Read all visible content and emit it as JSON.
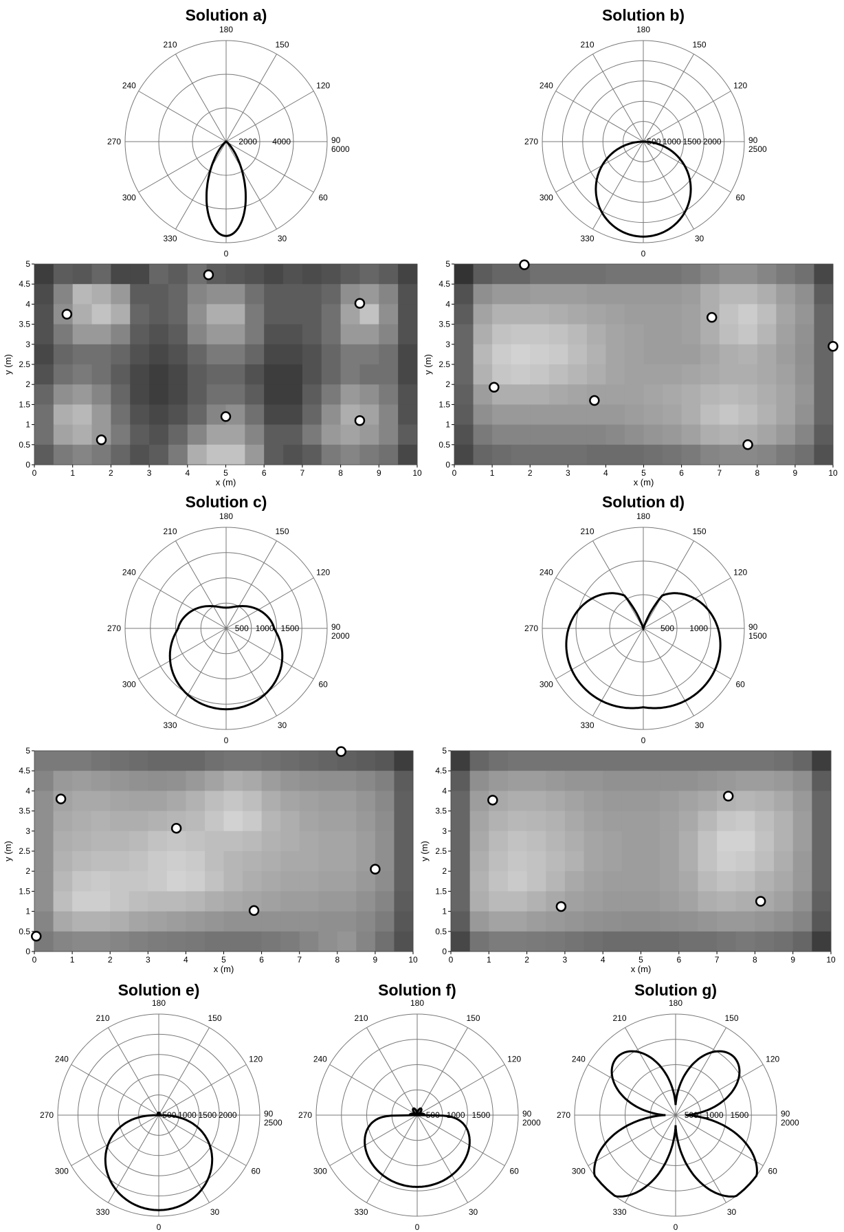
{
  "polar_common": {
    "angle_labels": [
      "0",
      "30",
      "60",
      "90",
      "120",
      "150",
      "180",
      "210",
      "240",
      "270",
      "300",
      "330"
    ],
    "rotation": "0 at bottom, clockwise through 90 at right",
    "line_color": "#000000",
    "grid_color": "#777777"
  },
  "heatmap_common": {
    "x_ticks": [
      "0",
      "1",
      "2",
      "3",
      "4",
      "5",
      "6",
      "7",
      "8",
      "9",
      "10"
    ],
    "y_ticks": [
      "0",
      "0.5",
      "1",
      "1.5",
      "2",
      "2.5",
      "3",
      "3.5",
      "4",
      "4.5",
      "5"
    ],
    "xlabel": "x (m)",
    "ylabel": "y (m)",
    "xlim": [
      0,
      10
    ],
    "ylim": [
      0,
      5
    ],
    "colormap": "grayscale (dark = low, light = high)"
  },
  "chart_data": [
    {
      "id": "a",
      "type": "polar",
      "title": "Solution a)",
      "rmax": 6000,
      "ring_labels": [
        "2000",
        "4000",
        "6000"
      ],
      "shape": "narrow single lobe toward 0 deg",
      "r_at_0": 5600,
      "lobe_power": 8
    },
    {
      "id": "b",
      "type": "polar",
      "title": "Solution b)",
      "rmax": 2500,
      "ring_labels": [
        "500",
        "1000",
        "1500",
        "2000",
        "2500"
      ],
      "shape": "circle toward 0 deg",
      "r_at_0": 2350,
      "lobe_power": 1
    },
    {
      "id": "c",
      "type": "polar",
      "title": "Solution c)",
      "rmax": 2000,
      "ring_labels": [
        "500",
        "1000",
        "1500",
        "2000"
      ],
      "shape": "heart-like lobe toward 0 deg with small upper lobes",
      "r_at_0": 1600,
      "r_at_60": 1150,
      "r_at_90": 830,
      "r_at_130": 430
    },
    {
      "id": "d",
      "type": "polar",
      "title": "Solution d)",
      "rmax": 1500,
      "ring_labels": [
        "500",
        "1000",
        "1500"
      ],
      "shape": "two large lobes near +/-100 deg",
      "r_at_0": 1350,
      "r_at_60": 1300,
      "r_at_90": 1330,
      "r_at_130": 1140
    },
    {
      "id": "e",
      "type": "polar",
      "title": "Solution e)",
      "rmax": 2500,
      "ring_labels": [
        "500",
        "1000",
        "1500",
        "2000",
        "2500"
      ],
      "shape": "egg-shaped lobe toward 0 deg",
      "r_at_0": 2350,
      "r_at_45": 1800,
      "r_at_90": 600
    },
    {
      "id": "f",
      "type": "polar",
      "title": "Solution f)",
      "rmax": 2000,
      "ring_labels": [
        "500",
        "1000",
        "1500",
        "2000"
      ],
      "shape": "broad lobe toward 0 deg with tiny upper lobes",
      "r_at_0": 1420,
      "r_at_60": 1410,
      "r_at_90": 720
    },
    {
      "id": "g",
      "type": "polar",
      "title": "Solution g)",
      "rmax": 2000,
      "ring_labels": [
        "500",
        "1000",
        "1500",
        "2000"
      ],
      "shape": "four lobes near +/-35 deg and +/-145 deg",
      "r_at_0": 700,
      "r_at_35": 1880,
      "r_at_90": 500,
      "r_at_145": 1430
    },
    {
      "id": "heat_a",
      "type": "heatmap",
      "grid": [
        20,
        10
      ],
      "points": [
        [
          0.85,
          3.75
        ],
        [
          1.75,
          0.62
        ],
        [
          4.55,
          4.73
        ],
        [
          5.0,
          1.2
        ],
        [
          8.5,
          4.02
        ],
        [
          8.5,
          1.1
        ]
      ],
      "values": [
        [
          0.15,
          0.3,
          0.28,
          0.35,
          0.2,
          0.2,
          0.35,
          0.3,
          0.4,
          0.3,
          0.28,
          0.25,
          0.2,
          0.25,
          0.22,
          0.25,
          0.3,
          0.35,
          0.3,
          0.18
        ],
        [
          0.22,
          0.5,
          0.75,
          0.7,
          0.6,
          0.3,
          0.3,
          0.35,
          0.5,
          0.55,
          0.55,
          0.4,
          0.3,
          0.3,
          0.3,
          0.35,
          0.55,
          0.6,
          0.5,
          0.25
        ],
        [
          0.25,
          0.55,
          0.7,
          0.8,
          0.7,
          0.35,
          0.3,
          0.35,
          0.55,
          0.7,
          0.7,
          0.45,
          0.3,
          0.3,
          0.3,
          0.4,
          0.65,
          0.8,
          0.55,
          0.25
        ],
        [
          0.25,
          0.45,
          0.6,
          0.6,
          0.5,
          0.3,
          0.25,
          0.3,
          0.5,
          0.6,
          0.6,
          0.45,
          0.25,
          0.25,
          0.3,
          0.4,
          0.6,
          0.6,
          0.5,
          0.25
        ],
        [
          0.2,
          0.35,
          0.4,
          0.4,
          0.35,
          0.25,
          0.2,
          0.25,
          0.35,
          0.45,
          0.45,
          0.35,
          0.2,
          0.2,
          0.25,
          0.35,
          0.45,
          0.45,
          0.4,
          0.2
        ],
        [
          0.25,
          0.4,
          0.45,
          0.4,
          0.3,
          0.2,
          0.15,
          0.2,
          0.3,
          0.35,
          0.35,
          0.25,
          0.15,
          0.15,
          0.25,
          0.35,
          0.45,
          0.4,
          0.4,
          0.2
        ],
        [
          0.35,
          0.55,
          0.6,
          0.5,
          0.35,
          0.2,
          0.15,
          0.2,
          0.3,
          0.4,
          0.4,
          0.3,
          0.15,
          0.15,
          0.3,
          0.45,
          0.6,
          0.55,
          0.45,
          0.25
        ],
        [
          0.4,
          0.7,
          0.75,
          0.6,
          0.4,
          0.25,
          0.2,
          0.25,
          0.35,
          0.5,
          0.55,
          0.4,
          0.2,
          0.2,
          0.35,
          0.55,
          0.7,
          0.65,
          0.5,
          0.25
        ],
        [
          0.4,
          0.65,
          0.7,
          0.6,
          0.45,
          0.3,
          0.25,
          0.35,
          0.5,
          0.65,
          0.65,
          0.5,
          0.3,
          0.3,
          0.45,
          0.6,
          0.65,
          0.6,
          0.5,
          0.3
        ],
        [
          0.3,
          0.45,
          0.5,
          0.45,
          0.35,
          0.25,
          0.3,
          0.45,
          0.7,
          0.8,
          0.8,
          0.6,
          0.3,
          0.25,
          0.3,
          0.45,
          0.5,
          0.45,
          0.4,
          0.2
        ]
      ]
    },
    {
      "id": "heat_b",
      "type": "heatmap",
      "grid": [
        20,
        10
      ],
      "points": [
        [
          1.05,
          1.93
        ],
        [
          1.85,
          4.98
        ],
        [
          3.7,
          1.6
        ],
        [
          6.8,
          3.67
        ],
        [
          7.75,
          0.5
        ],
        [
          10.0,
          2.95
        ]
      ],
      "values": [
        [
          0.1,
          0.3,
          0.35,
          0.35,
          0.4,
          0.4,
          0.4,
          0.4,
          0.42,
          0.42,
          0.42,
          0.42,
          0.45,
          0.5,
          0.55,
          0.55,
          0.5,
          0.45,
          0.4,
          0.2
        ],
        [
          0.25,
          0.55,
          0.6,
          0.6,
          0.62,
          0.62,
          0.62,
          0.6,
          0.6,
          0.6,
          0.6,
          0.6,
          0.62,
          0.7,
          0.75,
          0.75,
          0.7,
          0.62,
          0.55,
          0.3
        ],
        [
          0.3,
          0.65,
          0.72,
          0.72,
          0.72,
          0.7,
          0.68,
          0.66,
          0.64,
          0.62,
          0.62,
          0.62,
          0.64,
          0.7,
          0.8,
          0.85,
          0.78,
          0.66,
          0.58,
          0.35
        ],
        [
          0.35,
          0.7,
          0.8,
          0.82,
          0.82,
          0.8,
          0.76,
          0.7,
          0.66,
          0.64,
          0.62,
          0.62,
          0.64,
          0.7,
          0.78,
          0.82,
          0.74,
          0.64,
          0.56,
          0.35
        ],
        [
          0.35,
          0.75,
          0.85,
          0.88,
          0.86,
          0.84,
          0.78,
          0.72,
          0.66,
          0.64,
          0.62,
          0.62,
          0.62,
          0.66,
          0.7,
          0.72,
          0.68,
          0.62,
          0.55,
          0.35
        ],
        [
          0.35,
          0.72,
          0.82,
          0.84,
          0.82,
          0.78,
          0.74,
          0.7,
          0.66,
          0.64,
          0.64,
          0.64,
          0.66,
          0.68,
          0.7,
          0.7,
          0.68,
          0.64,
          0.56,
          0.35
        ],
        [
          0.32,
          0.62,
          0.7,
          0.7,
          0.7,
          0.68,
          0.66,
          0.64,
          0.64,
          0.64,
          0.66,
          0.68,
          0.7,
          0.74,
          0.76,
          0.74,
          0.7,
          0.66,
          0.58,
          0.35
        ],
        [
          0.3,
          0.55,
          0.6,
          0.6,
          0.6,
          0.6,
          0.6,
          0.6,
          0.6,
          0.62,
          0.64,
          0.66,
          0.7,
          0.78,
          0.82,
          0.78,
          0.72,
          0.66,
          0.56,
          0.35
        ],
        [
          0.25,
          0.45,
          0.5,
          0.5,
          0.5,
          0.5,
          0.5,
          0.5,
          0.52,
          0.55,
          0.58,
          0.6,
          0.64,
          0.7,
          0.72,
          0.7,
          0.66,
          0.6,
          0.5,
          0.3
        ],
        [
          0.2,
          0.35,
          0.38,
          0.4,
          0.4,
          0.4,
          0.4,
          0.38,
          0.38,
          0.38,
          0.4,
          0.42,
          0.45,
          0.5,
          0.52,
          0.52,
          0.5,
          0.45,
          0.4,
          0.25
        ]
      ]
    },
    {
      "id": "heat_c",
      "type": "heatmap",
      "grid": [
        20,
        10
      ],
      "points": [
        [
          0.05,
          0.38
        ],
        [
          0.7,
          3.8
        ],
        [
          3.75,
          3.07
        ],
        [
          5.8,
          1.02
        ],
        [
          8.1,
          4.98
        ],
        [
          9.0,
          2.05
        ]
      ],
      "values": [
        [
          0.45,
          0.45,
          0.45,
          0.42,
          0.4,
          0.38,
          0.36,
          0.36,
          0.36,
          0.4,
          0.42,
          0.42,
          0.4,
          0.38,
          0.36,
          0.34,
          0.32,
          0.3,
          0.28,
          0.15
        ],
        [
          0.5,
          0.6,
          0.62,
          0.6,
          0.58,
          0.56,
          0.55,
          0.56,
          0.6,
          0.65,
          0.7,
          0.68,
          0.62,
          0.58,
          0.56,
          0.55,
          0.55,
          0.52,
          0.48,
          0.3
        ],
        [
          0.55,
          0.65,
          0.68,
          0.68,
          0.66,
          0.65,
          0.65,
          0.68,
          0.72,
          0.78,
          0.82,
          0.78,
          0.7,
          0.66,
          0.64,
          0.62,
          0.62,
          0.58,
          0.52,
          0.32
        ],
        [
          0.55,
          0.68,
          0.7,
          0.72,
          0.7,
          0.7,
          0.72,
          0.74,
          0.76,
          0.82,
          0.88,
          0.84,
          0.74,
          0.7,
          0.66,
          0.64,
          0.64,
          0.6,
          0.54,
          0.32
        ],
        [
          0.55,
          0.7,
          0.72,
          0.74,
          0.74,
          0.76,
          0.8,
          0.82,
          0.8,
          0.78,
          0.78,
          0.76,
          0.72,
          0.7,
          0.68,
          0.66,
          0.66,
          0.62,
          0.55,
          0.32
        ],
        [
          0.55,
          0.72,
          0.76,
          0.78,
          0.78,
          0.8,
          0.84,
          0.86,
          0.84,
          0.78,
          0.74,
          0.72,
          0.7,
          0.68,
          0.68,
          0.66,
          0.66,
          0.62,
          0.55,
          0.32
        ],
        [
          0.55,
          0.75,
          0.82,
          0.84,
          0.82,
          0.82,
          0.84,
          0.88,
          0.86,
          0.8,
          0.74,
          0.7,
          0.68,
          0.66,
          0.66,
          0.64,
          0.64,
          0.6,
          0.54,
          0.32
        ],
        [
          0.55,
          0.78,
          0.86,
          0.86,
          0.82,
          0.78,
          0.76,
          0.76,
          0.74,
          0.7,
          0.68,
          0.66,
          0.64,
          0.62,
          0.62,
          0.6,
          0.6,
          0.56,
          0.5,
          0.3
        ],
        [
          0.5,
          0.68,
          0.72,
          0.72,
          0.7,
          0.66,
          0.64,
          0.62,
          0.6,
          0.58,
          0.56,
          0.56,
          0.56,
          0.56,
          0.56,
          0.55,
          0.55,
          0.52,
          0.46,
          0.28
        ],
        [
          0.45,
          0.5,
          0.52,
          0.52,
          0.5,
          0.48,
          0.46,
          0.45,
          0.44,
          0.42,
          0.42,
          0.42,
          0.44,
          0.46,
          0.5,
          0.55,
          0.58,
          0.5,
          0.4,
          0.25
        ]
      ]
    },
    {
      "id": "heat_d",
      "type": "heatmap",
      "grid": [
        20,
        10
      ],
      "points": [
        [
          1.1,
          3.77
        ],
        [
          2.9,
          1.12
        ],
        [
          7.3,
          3.87
        ],
        [
          8.15,
          1.25
        ]
      ],
      "values": [
        [
          0.15,
          0.35,
          0.4,
          0.42,
          0.42,
          0.42,
          0.42,
          0.42,
          0.42,
          0.42,
          0.42,
          0.42,
          0.42,
          0.42,
          0.42,
          0.42,
          0.42,
          0.4,
          0.35,
          0.15
        ],
        [
          0.3,
          0.55,
          0.6,
          0.62,
          0.62,
          0.6,
          0.58,
          0.58,
          0.56,
          0.56,
          0.56,
          0.56,
          0.56,
          0.58,
          0.6,
          0.62,
          0.62,
          0.6,
          0.55,
          0.3
        ],
        [
          0.35,
          0.62,
          0.68,
          0.7,
          0.7,
          0.68,
          0.65,
          0.62,
          0.6,
          0.6,
          0.6,
          0.62,
          0.65,
          0.68,
          0.72,
          0.74,
          0.72,
          0.68,
          0.6,
          0.35
        ],
        [
          0.35,
          0.66,
          0.72,
          0.75,
          0.74,
          0.72,
          0.68,
          0.64,
          0.62,
          0.62,
          0.62,
          0.64,
          0.68,
          0.75,
          0.82,
          0.84,
          0.78,
          0.72,
          0.62,
          0.35
        ],
        [
          0.35,
          0.68,
          0.76,
          0.8,
          0.78,
          0.74,
          0.7,
          0.66,
          0.64,
          0.62,
          0.62,
          0.64,
          0.7,
          0.8,
          0.88,
          0.88,
          0.8,
          0.72,
          0.62,
          0.35
        ],
        [
          0.35,
          0.7,
          0.78,
          0.82,
          0.8,
          0.76,
          0.72,
          0.66,
          0.64,
          0.62,
          0.62,
          0.64,
          0.7,
          0.8,
          0.86,
          0.84,
          0.78,
          0.7,
          0.6,
          0.35
        ],
        [
          0.35,
          0.72,
          0.8,
          0.84,
          0.8,
          0.74,
          0.68,
          0.64,
          0.62,
          0.62,
          0.62,
          0.64,
          0.68,
          0.76,
          0.8,
          0.78,
          0.72,
          0.68,
          0.6,
          0.35
        ],
        [
          0.35,
          0.7,
          0.76,
          0.76,
          0.72,
          0.68,
          0.64,
          0.62,
          0.6,
          0.6,
          0.6,
          0.62,
          0.65,
          0.7,
          0.72,
          0.7,
          0.68,
          0.64,
          0.56,
          0.32
        ],
        [
          0.3,
          0.6,
          0.65,
          0.65,
          0.62,
          0.6,
          0.58,
          0.56,
          0.55,
          0.54,
          0.54,
          0.55,
          0.56,
          0.58,
          0.6,
          0.6,
          0.58,
          0.55,
          0.5,
          0.28
        ],
        [
          0.2,
          0.42,
          0.46,
          0.46,
          0.45,
          0.44,
          0.42,
          0.4,
          0.38,
          0.38,
          0.38,
          0.38,
          0.4,
          0.4,
          0.42,
          0.44,
          0.42,
          0.4,
          0.35,
          0.15
        ]
      ]
    }
  ]
}
